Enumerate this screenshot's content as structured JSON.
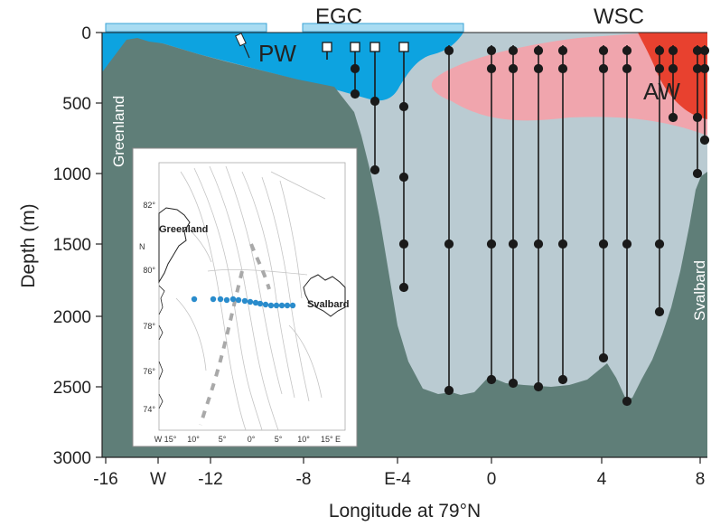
{
  "figure": {
    "ylabel": "Depth (m)",
    "xlabel": "Longitude at 79°N",
    "y_ticks": [
      "0",
      "500",
      "1000",
      "1500",
      "2000",
      "2500",
      "3000"
    ],
    "x_ticks": [
      "-16",
      "W",
      "-12",
      "-8",
      "E-4",
      "0",
      "4",
      "8"
    ],
    "labels": {
      "egc": "EGC",
      "wsc": "WSC",
      "pw": "PW",
      "aw": "AW",
      "greenland": "Greenland",
      "svalbard": "Svalbard"
    },
    "colors": {
      "seafloor": "#5f7e78",
      "deep_water": "#bacbd2",
      "polar_water": "#0da3e0",
      "atlantic_water_light": "#f0a5ad",
      "atlantic_water_core": "#e8412f",
      "ice_bar": "#a9dcf2",
      "moorings": "#1a1a1a"
    }
  },
  "inset": {
    "lat_ticks": [
      "82°",
      "80°",
      "78°",
      "76°",
      "74°"
    ],
    "lon_ticks": [
      "W 15°",
      "10°",
      "5°",
      "0°",
      "5°",
      "10°",
      "15° E"
    ],
    "greenland_label": "Greenland",
    "n_label": "N",
    "svalbard_label": "Svalbard",
    "station_color": "#2a8ccc"
  }
}
